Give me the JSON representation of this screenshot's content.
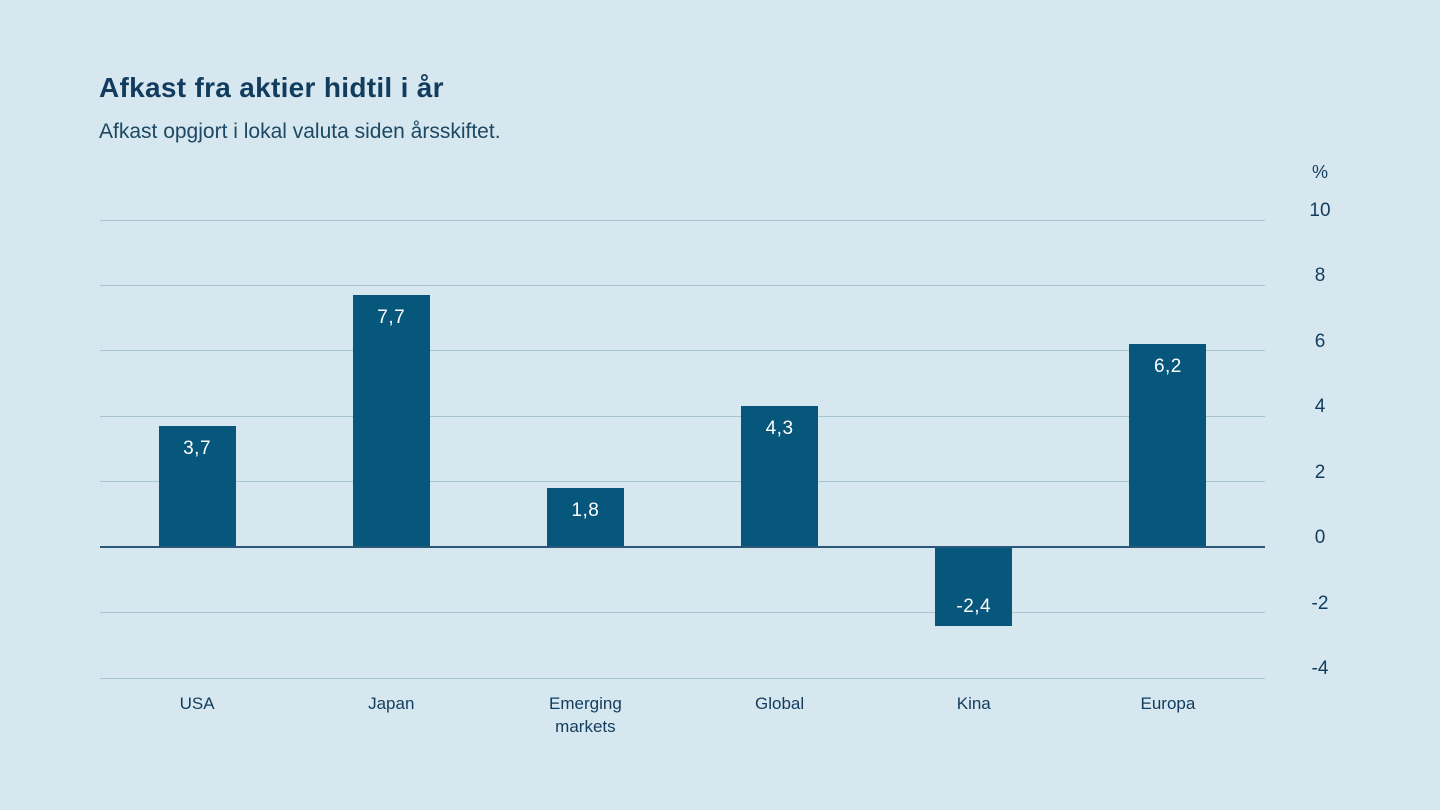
{
  "header": {
    "title": "Afkast fra aktier hidtil i år",
    "subtitle": "Afkast opgjort i lokal valuta siden årsskiftet."
  },
  "chart_data": {
    "type": "bar",
    "title": "Afkast fra aktier hidtil i år",
    "subtitle": "Afkast opgjort i lokal valuta siden årsskiftet.",
    "unit_label": "%",
    "categories": [
      "USA",
      "Japan",
      "Emerging markets",
      "Global",
      "Kina",
      "Europa"
    ],
    "values": [
      3.7,
      7.7,
      1.8,
      4.3,
      -2.4,
      6.2
    ],
    "value_labels": [
      "3,7",
      "7,7",
      "1,8",
      "4,3",
      "-2,4",
      "6,2"
    ],
    "ylim": [
      -4,
      10
    ],
    "yticks": [
      10,
      8,
      6,
      4,
      2,
      0,
      -2,
      -4
    ],
    "grid": true,
    "legend": "none",
    "axis_side": "right",
    "colors": {
      "background": "#d6e7ef",
      "bar": "#07567c",
      "grid": "#a8c4d2",
      "zero_line": "#2a5878",
      "text": "#123c5e",
      "value_label": "#ffffff"
    }
  }
}
